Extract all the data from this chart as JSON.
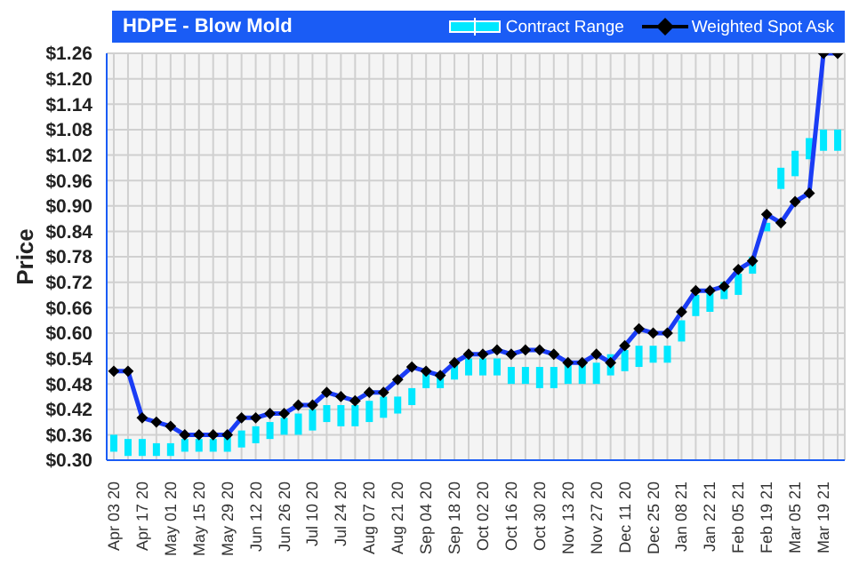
{
  "chart_data": {
    "type": "line",
    "title": "HDPE - Blow Mold",
    "ylabel": "Price",
    "categories": [
      "Apr 03 20",
      null,
      "Apr 17 20",
      null,
      "May 01 20",
      null,
      "May 15 20",
      null,
      "May 29 20",
      null,
      "Jun 12 20",
      null,
      "Jun 26 20",
      null,
      "Jul 10 20",
      null,
      "Jul 24 20",
      null,
      "Aug 07 20",
      null,
      "Aug 21 20",
      null,
      "Sep 04 20",
      null,
      "Sep 18 20",
      null,
      "Oct 02 20",
      null,
      "Oct 16 20",
      null,
      "Oct 30 20",
      null,
      "Nov 13 20",
      null,
      "Nov 27 20",
      null,
      "Dec 11 20",
      null,
      "Dec 25 20",
      null,
      "Jan 08 21",
      null,
      "Jan 22 21",
      null,
      "Feb 05 21",
      null,
      "Feb 19 21",
      null,
      "Mar 05 21",
      null,
      "Mar 19 21",
      null
    ],
    "series": [
      {
        "name": "Contract Range",
        "type": "bar",
        "color": "#00e8ff",
        "base": [
          0.32,
          0.31,
          0.31,
          0.31,
          0.31,
          0.32,
          0.32,
          0.32,
          0.32,
          0.33,
          0.34,
          0.35,
          0.36,
          0.36,
          0.37,
          0.39,
          0.38,
          0.38,
          0.39,
          0.4,
          0.41,
          0.43,
          0.47,
          0.47,
          0.49,
          0.5,
          0.5,
          0.5,
          0.48,
          0.48,
          0.47,
          0.47,
          0.48,
          0.48,
          0.48,
          0.5,
          0.51,
          0.52,
          0.53,
          0.53,
          0.58,
          0.64,
          0.65,
          0.68,
          0.69,
          0.74,
          0.84,
          0.94,
          0.97,
          1.01,
          1.03,
          1.03
        ],
        "values": [
          0.04,
          0.04,
          0.04,
          0.03,
          0.03,
          0.03,
          0.03,
          0.03,
          0.04,
          0.04,
          0.04,
          0.04,
          0.04,
          0.05,
          0.05,
          0.04,
          0.05,
          0.05,
          0.05,
          0.05,
          0.04,
          0.04,
          0.04,
          0.03,
          0.04,
          0.04,
          0.04,
          0.04,
          0.04,
          0.04,
          0.05,
          0.05,
          0.05,
          0.05,
          0.05,
          0.05,
          0.05,
          0.05,
          0.04,
          0.04,
          0.05,
          0.05,
          0.05,
          0.04,
          0.05,
          0.04,
          0.02,
          0.05,
          0.06,
          0.05,
          0.05,
          0.05
        ]
      },
      {
        "name": "Weighted Spot Ask",
        "color": "#1a3cf5",
        "marker": "diamond",
        "line_style": "solid",
        "values": [
          0.51,
          0.51,
          0.4,
          0.39,
          0.38,
          0.36,
          0.36,
          0.36,
          0.36,
          0.4,
          0.4,
          0.41,
          0.41,
          0.43,
          0.43,
          0.46,
          0.45,
          0.44,
          0.46,
          0.46,
          0.49,
          0.52,
          0.51,
          0.5,
          0.53,
          0.55,
          0.55,
          0.56,
          0.55,
          0.56,
          0.56,
          0.55,
          0.53,
          0.53,
          0.55,
          0.53,
          0.57,
          0.61,
          0.6,
          0.6,
          0.65,
          0.7,
          0.7,
          0.71,
          0.75,
          0.77,
          0.88,
          0.86,
          0.91,
          0.93,
          1.26,
          1.26
        ]
      }
    ],
    "ylim": [
      0.3,
      1.26
    ],
    "yticks": [
      {
        "value": 0.3,
        "label": "$0.30"
      },
      {
        "value": 0.36,
        "label": "$0.36"
      },
      {
        "value": 0.42,
        "label": "$0.42"
      },
      {
        "value": 0.48,
        "label": "$0.48"
      },
      {
        "value": 0.54,
        "label": "$0.54"
      },
      {
        "value": 0.6,
        "label": "$0.60"
      },
      {
        "value": 0.66,
        "label": "$0.66"
      },
      {
        "value": 0.72,
        "label": "$0.72"
      },
      {
        "value": 0.78,
        "label": "$0.78"
      },
      {
        "value": 0.84,
        "label": "$0.84"
      },
      {
        "value": 0.9,
        "label": "$0.90"
      },
      {
        "value": 0.96,
        "label": "$0.96"
      },
      {
        "value": 1.02,
        "label": "$1.02"
      },
      {
        "value": 1.08,
        "label": "$1.08"
      },
      {
        "value": 1.14,
        "label": "$1.14"
      },
      {
        "value": 1.2,
        "label": "$1.20"
      },
      {
        "value": 1.26,
        "label": "$1.26"
      }
    ],
    "grid": true,
    "legend": "top right"
  }
}
